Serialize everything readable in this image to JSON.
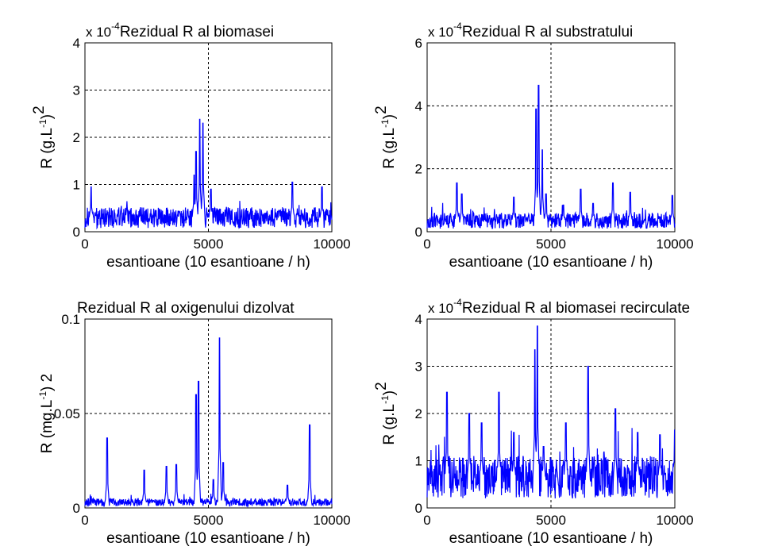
{
  "figure": {
    "background": "#ffffff",
    "line_color": "#0000ff",
    "grid_color": "#000000"
  },
  "chart_data": [
    {
      "type": "line",
      "title": "Rezidual R al biomasei",
      "multiplier": {
        "base": "x 10",
        "exp": "-4"
      },
      "xlabel": "esantioane (10 esantioane / h)",
      "ylabel": {
        "main": "R (g.L",
        "sup1": "-1",
        "close": ")",
        "sup2": "2"
      },
      "xlim": [
        0,
        10000
      ],
      "ylim": [
        0,
        4
      ],
      "x_ticks": [
        0,
        5000,
        10000
      ],
      "x_tick_labels": [
        "0",
        "5000",
        "10000"
      ],
      "y_ticks": [
        0,
        1,
        2,
        3,
        4
      ],
      "y_tick_labels": [
        "0",
        "1",
        "2",
        "3",
        "4"
      ],
      "grid": true,
      "baseline": 0.3,
      "noise": 0.22,
      "spikes": [
        [
          4500,
          1.7
        ],
        [
          4650,
          2.38
        ],
        [
          4780,
          2.3
        ],
        [
          4420,
          1.2
        ],
        [
          5100,
          0.9
        ],
        [
          8400,
          1.05
        ],
        [
          9600,
          0.95
        ],
        [
          250,
          0.95
        ]
      ],
      "series": [
        {
          "values_note": "dense noisy residual series",
          "color": "#0000ff"
        }
      ]
    },
    {
      "type": "line",
      "title": "Rezidual R al substratului",
      "multiplier": {
        "base": "x 10",
        "exp": "-4"
      },
      "xlabel": "esantioane (10 esantioane / h)",
      "ylabel": {
        "main": "R (g.L",
        "sup1": "-1",
        "close": ")",
        "sup2": "2"
      },
      "xlim": [
        0,
        10000
      ],
      "ylim": [
        0,
        6
      ],
      "x_ticks": [
        0,
        5000,
        10000
      ],
      "x_tick_labels": [
        "0",
        "5000",
        "10000"
      ],
      "y_ticks": [
        0,
        2,
        4,
        6
      ],
      "y_tick_labels": [
        "0",
        "2",
        "4",
        "6"
      ],
      "grid": true,
      "baseline": 0.35,
      "noise": 0.25,
      "spikes": [
        [
          1200,
          1.55
        ],
        [
          1400,
          1.2
        ],
        [
          3500,
          1.1
        ],
        [
          4400,
          3.9
        ],
        [
          4500,
          4.65
        ],
        [
          4650,
          2.6
        ],
        [
          4800,
          1.2
        ],
        [
          5500,
          0.85
        ],
        [
          6200,
          1.35
        ],
        [
          6700,
          0.9
        ],
        [
          7500,
          1.55
        ],
        [
          8200,
          1.25
        ],
        [
          9900,
          1.15
        ]
      ],
      "series": [
        {
          "values_note": "dense noisy residual series",
          "color": "#0000ff"
        }
      ]
    },
    {
      "type": "line",
      "title": "Rezidual R al oxigenului dizolvat",
      "multiplier": null,
      "xlabel": "esantioane (10 esantioane / h)",
      "ylabel": {
        "main": "R (mg.L",
        "sup1": "-1",
        "close": ") 2",
        "sup2": ""
      },
      "xlim": [
        0,
        10000
      ],
      "ylim": [
        0,
        0.1
      ],
      "x_ticks": [
        0,
        5000,
        10000
      ],
      "x_tick_labels": [
        "0",
        "5000",
        "10000"
      ],
      "y_ticks": [
        0,
        0.05,
        0.1
      ],
      "y_tick_labels": [
        "0",
        "0.05",
        "0.1"
      ],
      "grid": true,
      "baseline": 0.003,
      "noise": 0.002,
      "spikes": [
        [
          900,
          0.037
        ],
        [
          2400,
          0.02
        ],
        [
          3300,
          0.022
        ],
        [
          3700,
          0.023
        ],
        [
          4500,
          0.06
        ],
        [
          4600,
          0.067
        ],
        [
          5200,
          0.015
        ],
        [
          5450,
          0.09
        ],
        [
          5600,
          0.024
        ],
        [
          8200,
          0.012
        ],
        [
          9100,
          0.044
        ]
      ],
      "series": [
        {
          "values_note": "dense noisy residual series",
          "color": "#0000ff"
        }
      ]
    },
    {
      "type": "line",
      "title": "Rezidual R al biomasei recirculate",
      "multiplier": {
        "base": "x 10",
        "exp": "-4"
      },
      "xlabel": "esantioane (10 esantioane / h)",
      "ylabel": {
        "main": "R (g.L",
        "sup1": "-1",
        "close": ")",
        "sup2": "2"
      },
      "xlim": [
        0,
        10000
      ],
      "ylim": [
        0,
        4
      ],
      "x_ticks": [
        0,
        5000,
        10000
      ],
      "x_tick_labels": [
        "0",
        "5000",
        "10000"
      ],
      "y_ticks": [
        0,
        1,
        2,
        3,
        4
      ],
      "y_tick_labels": [
        "0",
        "1",
        "2",
        "3",
        "4"
      ],
      "grid": true,
      "baseline": 0.65,
      "noise": 0.45,
      "spikes": [
        [
          800,
          2.45
        ],
        [
          1700,
          2.0
        ],
        [
          2200,
          1.8
        ],
        [
          2900,
          2.45
        ],
        [
          3500,
          1.6
        ],
        [
          4350,
          3.35
        ],
        [
          4450,
          3.85
        ],
        [
          4700,
          1.3
        ],
        [
          5600,
          1.8
        ],
        [
          6500,
          3.0
        ],
        [
          7600,
          2.1
        ],
        [
          8500,
          1.6
        ],
        [
          9400,
          1.55
        ],
        [
          10000,
          1.65
        ]
      ],
      "series": [
        {
          "values_note": "dense noisy residual series",
          "color": "#0000ff"
        }
      ]
    }
  ]
}
